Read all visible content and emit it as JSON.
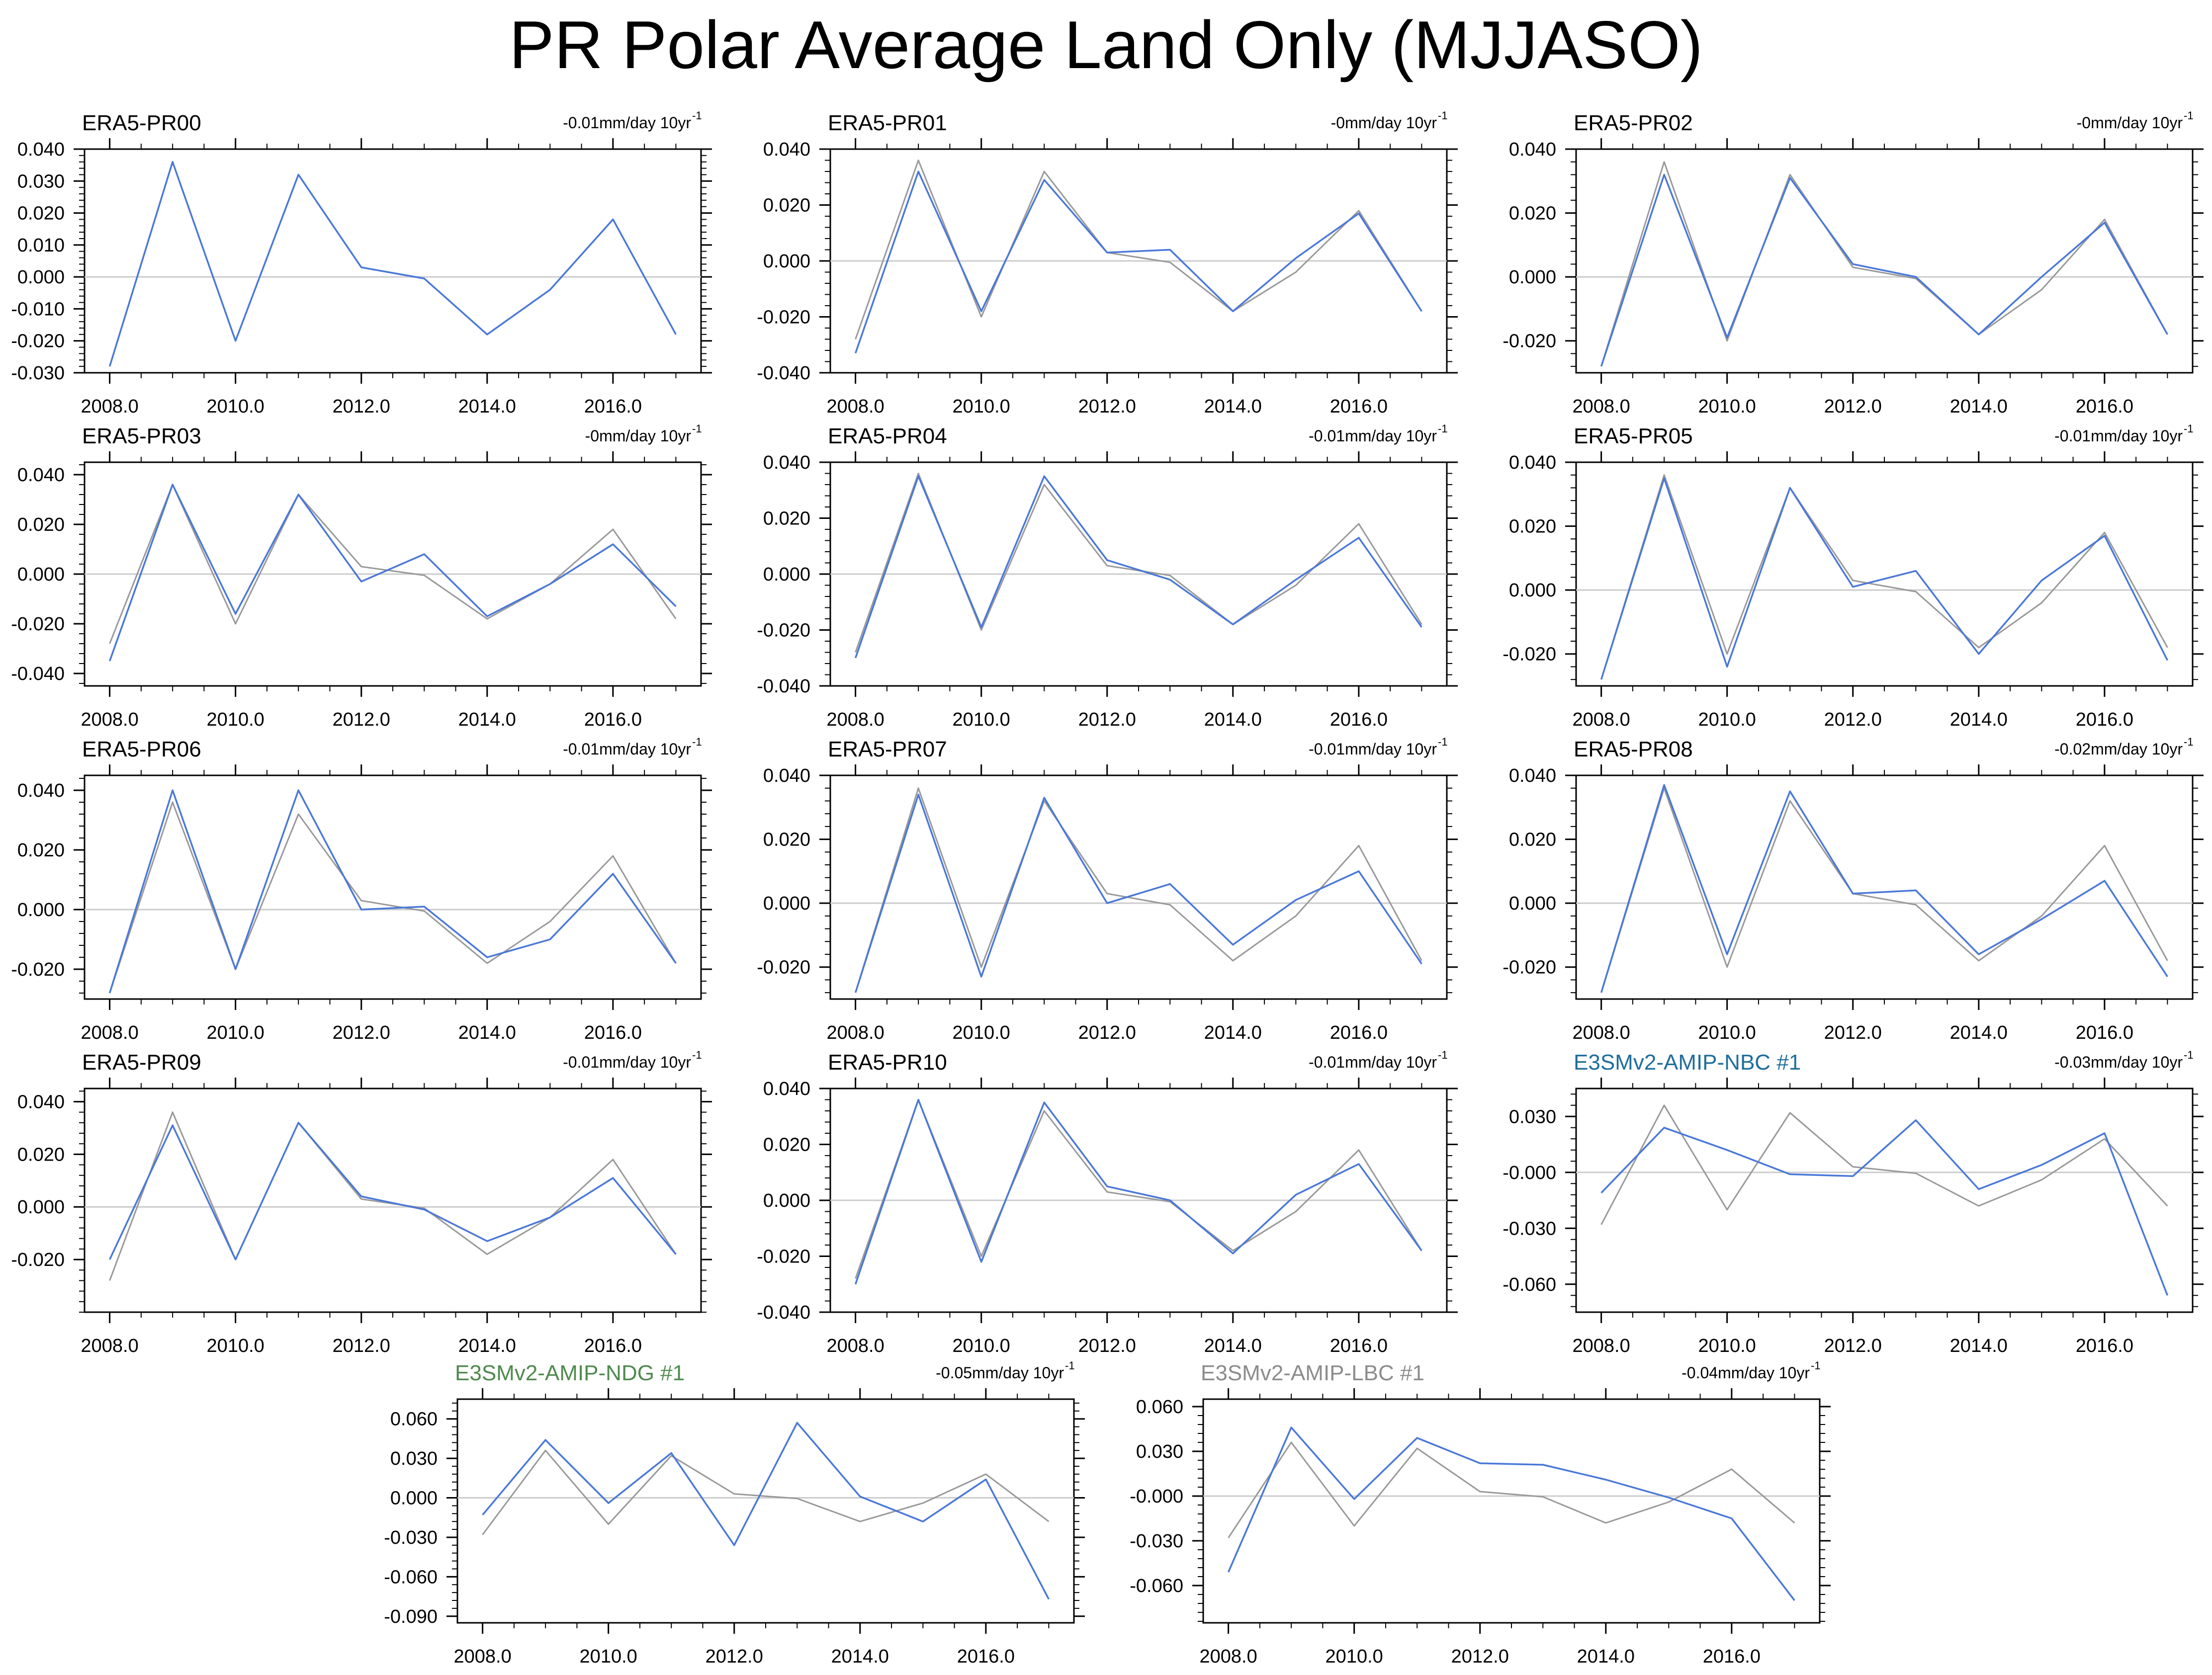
{
  "title": "PR Polar Average Land Only (MJJASO)",
  "colors": {
    "reference_line": "#999999",
    "series_line": "#4a78d8",
    "zero_line": "#cccccc",
    "label_default": "#000000",
    "label_nbc": "#1f6e9c",
    "label_ndg": "#4f8a4f",
    "label_lbc": "#8c8c8c"
  },
  "chart_data": [
    {
      "type": "line",
      "title": "ERA5-PR00",
      "trend": "-0.01mm/day 10yr",
      "trend_exp": "-1",
      "x": [
        2008,
        2009,
        2010,
        2011,
        2012,
        2013,
        2014,
        2015,
        2016,
        2017
      ],
      "xticks": [
        "2008.0",
        "2010.0",
        "2012.0",
        "2014.0",
        "2016.0"
      ],
      "ylim": [
        -0.03,
        0.04
      ],
      "yticks": [
        "0.040",
        "0.030",
        "0.020",
        "0.010",
        "0.000",
        "-0.010",
        "-0.020",
        "-0.030"
      ],
      "series": [
        {
          "name": "ERA5",
          "values": [
            -0.028,
            0.036,
            -0.02,
            0.032,
            0.003,
            -0.0005,
            -0.018,
            -0.004,
            0.018,
            -0.018
          ]
        }
      ]
    },
    {
      "type": "line",
      "title": "ERA5-PR01",
      "trend": "-0mm/day 10yr",
      "trend_exp": "-1",
      "x": [
        2008,
        2009,
        2010,
        2011,
        2012,
        2013,
        2014,
        2015,
        2016,
        2017
      ],
      "xticks": [
        "2008.0",
        "2010.0",
        "2012.0",
        "2014.0",
        "2016.0"
      ],
      "ylim": [
        -0.04,
        0.04
      ],
      "yticks": [
        "0.040",
        "0.020",
        "0.000",
        "-0.020",
        "-0.040"
      ],
      "series": [
        {
          "name": "ERA5",
          "values": [
            -0.028,
            0.036,
            -0.02,
            0.032,
            0.003,
            -0.0005,
            -0.018,
            -0.004,
            0.018,
            -0.018
          ]
        },
        {
          "name": "ERA5-PR01",
          "values": [
            -0.033,
            0.032,
            -0.018,
            0.029,
            0.003,
            0.004,
            -0.018,
            0.001,
            0.017,
            -0.018
          ]
        }
      ]
    },
    {
      "type": "line",
      "title": "ERA5-PR02",
      "trend": "-0mm/day 10yr",
      "trend_exp": "-1",
      "x": [
        2008,
        2009,
        2010,
        2011,
        2012,
        2013,
        2014,
        2015,
        2016,
        2017
      ],
      "xticks": [
        "2008.0",
        "2010.0",
        "2012.0",
        "2014.0",
        "2016.0"
      ],
      "ylim": [
        -0.03,
        0.04
      ],
      "yticks": [
        "0.040",
        "0.020",
        "0.000",
        "-0.020"
      ],
      "series": [
        {
          "name": "ERA5",
          "values": [
            -0.028,
            0.036,
            -0.02,
            0.032,
            0.003,
            -0.0005,
            -0.018,
            -0.004,
            0.018,
            -0.018
          ]
        },
        {
          "name": "ERA5-PR02",
          "values": [
            -0.028,
            0.032,
            -0.019,
            0.031,
            0.004,
            0.0,
            -0.018,
            0.0,
            0.017,
            -0.018
          ]
        }
      ]
    },
    {
      "type": "line",
      "title": "ERA5-PR03",
      "trend": "-0mm/day 10yr",
      "trend_exp": "-1",
      "x": [
        2008,
        2009,
        2010,
        2011,
        2012,
        2013,
        2014,
        2015,
        2016,
        2017
      ],
      "xticks": [
        "2008.0",
        "2010.0",
        "2012.0",
        "2014.0",
        "2016.0"
      ],
      "ylim": [
        -0.045,
        0.045
      ],
      "yticks": [
        "0.040",
        "0.020",
        "0.000",
        "-0.020",
        "-0.040"
      ],
      "series": [
        {
          "name": "ERA5",
          "values": [
            -0.028,
            0.036,
            -0.02,
            0.032,
            0.003,
            -0.0005,
            -0.018,
            -0.004,
            0.018,
            -0.018
          ]
        },
        {
          "name": "ERA5-PR03",
          "values": [
            -0.035,
            0.036,
            -0.016,
            0.032,
            -0.003,
            0.008,
            -0.017,
            -0.004,
            0.012,
            -0.013
          ]
        }
      ]
    },
    {
      "type": "line",
      "title": "ERA5-PR04",
      "trend": "-0.01mm/day 10yr",
      "trend_exp": "-1",
      "x": [
        2008,
        2009,
        2010,
        2011,
        2012,
        2013,
        2014,
        2015,
        2016,
        2017
      ],
      "xticks": [
        "2008.0",
        "2010.0",
        "2012.0",
        "2014.0",
        "2016.0"
      ],
      "ylim": [
        -0.04,
        0.04
      ],
      "yticks": [
        "0.040",
        "0.020",
        "0.000",
        "-0.020",
        "-0.040"
      ],
      "series": [
        {
          "name": "ERA5",
          "values": [
            -0.028,
            0.036,
            -0.02,
            0.032,
            0.003,
            -0.0005,
            -0.018,
            -0.004,
            0.018,
            -0.018
          ]
        },
        {
          "name": "ERA5-PR04",
          "values": [
            -0.03,
            0.035,
            -0.019,
            0.035,
            0.005,
            -0.002,
            -0.018,
            -0.002,
            0.013,
            -0.019
          ]
        }
      ]
    },
    {
      "type": "line",
      "title": "ERA5-PR05",
      "trend": "-0.01mm/day 10yr",
      "trend_exp": "-1",
      "x": [
        2008,
        2009,
        2010,
        2011,
        2012,
        2013,
        2014,
        2015,
        2016,
        2017
      ],
      "xticks": [
        "2008.0",
        "2010.0",
        "2012.0",
        "2014.0",
        "2016.0"
      ],
      "ylim": [
        -0.03,
        0.04
      ],
      "yticks": [
        "0.040",
        "0.020",
        "0.000",
        "-0.020"
      ],
      "series": [
        {
          "name": "ERA5",
          "values": [
            -0.028,
            0.036,
            -0.02,
            0.032,
            0.003,
            -0.0005,
            -0.018,
            -0.004,
            0.018,
            -0.018
          ]
        },
        {
          "name": "ERA5-PR05",
          "values": [
            -0.028,
            0.035,
            -0.024,
            0.032,
            0.001,
            0.006,
            -0.02,
            0.003,
            0.017,
            -0.022
          ]
        }
      ]
    },
    {
      "type": "line",
      "title": "ERA5-PR06",
      "trend": "-0.01mm/day 10yr",
      "trend_exp": "-1",
      "x": [
        2008,
        2009,
        2010,
        2011,
        2012,
        2013,
        2014,
        2015,
        2016,
        2017
      ],
      "xticks": [
        "2008.0",
        "2010.0",
        "2012.0",
        "2014.0",
        "2016.0"
      ],
      "ylim": [
        -0.03,
        0.045
      ],
      "yticks": [
        "0.040",
        "0.020",
        "0.000",
        "-0.020"
      ],
      "series": [
        {
          "name": "ERA5",
          "values": [
            -0.028,
            0.036,
            -0.02,
            0.032,
            0.003,
            -0.0005,
            -0.018,
            -0.004,
            0.018,
            -0.018
          ]
        },
        {
          "name": "ERA5-PR06",
          "values": [
            -0.028,
            0.04,
            -0.02,
            0.04,
            0.0,
            0.001,
            -0.016,
            -0.01,
            0.012,
            -0.018
          ]
        }
      ]
    },
    {
      "type": "line",
      "title": "ERA5-PR07",
      "trend": "-0.01mm/day 10yr",
      "trend_exp": "-1",
      "x": [
        2008,
        2009,
        2010,
        2011,
        2012,
        2013,
        2014,
        2015,
        2016,
        2017
      ],
      "xticks": [
        "2008.0",
        "2010.0",
        "2012.0",
        "2014.0",
        "2016.0"
      ],
      "ylim": [
        -0.03,
        0.04
      ],
      "yticks": [
        "0.040",
        "0.020",
        "0.000",
        "-0.020"
      ],
      "series": [
        {
          "name": "ERA5",
          "values": [
            -0.028,
            0.036,
            -0.02,
            0.032,
            0.003,
            -0.0005,
            -0.018,
            -0.004,
            0.018,
            -0.018
          ]
        },
        {
          "name": "ERA5-PR07",
          "values": [
            -0.028,
            0.034,
            -0.023,
            0.033,
            0.0,
            0.006,
            -0.013,
            0.001,
            0.01,
            -0.019
          ]
        }
      ]
    },
    {
      "type": "line",
      "title": "ERA5-PR08",
      "trend": "-0.02mm/day 10yr",
      "trend_exp": "-1",
      "x": [
        2008,
        2009,
        2010,
        2011,
        2012,
        2013,
        2014,
        2015,
        2016,
        2017
      ],
      "xticks": [
        "2008.0",
        "2010.0",
        "2012.0",
        "2014.0",
        "2016.0"
      ],
      "ylim": [
        -0.03,
        0.04
      ],
      "yticks": [
        "0.040",
        "0.020",
        "0.000",
        "-0.020"
      ],
      "series": [
        {
          "name": "ERA5",
          "values": [
            -0.028,
            0.036,
            -0.02,
            0.032,
            0.003,
            -0.0005,
            -0.018,
            -0.004,
            0.018,
            -0.018
          ]
        },
        {
          "name": "ERA5-PR08",
          "values": [
            -0.028,
            0.037,
            -0.016,
            0.035,
            0.003,
            0.004,
            -0.016,
            -0.005,
            0.007,
            -0.023
          ]
        }
      ]
    },
    {
      "type": "line",
      "title": "ERA5-PR09",
      "trend": "-0.01mm/day 10yr",
      "trend_exp": "-1",
      "x": [
        2008,
        2009,
        2010,
        2011,
        2012,
        2013,
        2014,
        2015,
        2016,
        2017
      ],
      "xticks": [
        "2008.0",
        "2010.0",
        "2012.0",
        "2014.0",
        "2016.0"
      ],
      "ylim": [
        -0.04,
        0.045
      ],
      "yticks": [
        "0.040",
        "0.020",
        "0.000",
        "-0.020"
      ],
      "series": [
        {
          "name": "ERA5",
          "values": [
            -0.028,
            0.036,
            -0.02,
            0.032,
            0.003,
            -0.0005,
            -0.018,
            -0.004,
            0.018,
            -0.018
          ]
        },
        {
          "name": "ERA5-PR09",
          "values": [
            -0.02,
            0.031,
            -0.02,
            0.032,
            0.004,
            -0.001,
            -0.013,
            -0.004,
            0.011,
            -0.018
          ]
        }
      ]
    },
    {
      "type": "line",
      "title": "ERA5-PR10",
      "trend": "-0.01mm/day 10yr",
      "trend_exp": "-1",
      "x": [
        2008,
        2009,
        2010,
        2011,
        2012,
        2013,
        2014,
        2015,
        2016,
        2017
      ],
      "xticks": [
        "2008.0",
        "2010.0",
        "2012.0",
        "2014.0",
        "2016.0"
      ],
      "ylim": [
        -0.04,
        0.04
      ],
      "yticks": [
        "0.040",
        "0.020",
        "0.000",
        "-0.020",
        "-0.040"
      ],
      "series": [
        {
          "name": "ERA5",
          "values": [
            -0.028,
            0.036,
            -0.02,
            0.032,
            0.003,
            -0.0005,
            -0.018,
            -0.004,
            0.018,
            -0.018
          ]
        },
        {
          "name": "ERA5-PR10",
          "values": [
            -0.03,
            0.036,
            -0.022,
            0.035,
            0.005,
            0.0,
            -0.019,
            0.002,
            0.013,
            -0.018
          ]
        }
      ]
    },
    {
      "type": "line",
      "title": "E3SMv2-AMIP-NBC #1",
      "title_color": "label_nbc",
      "trend": "-0.03mm/day 10yr",
      "trend_exp": "-1",
      "x": [
        2008,
        2009,
        2010,
        2011,
        2012,
        2013,
        2014,
        2015,
        2016,
        2017
      ],
      "xticks": [
        "2008.0",
        "2010.0",
        "2012.0",
        "2014.0",
        "2016.0"
      ],
      "ylim": [
        -0.075,
        0.045
      ],
      "yticks": [
        "0.030",
        "-0.000",
        "-0.030",
        "-0.060"
      ],
      "series": [
        {
          "name": "ERA5",
          "values": [
            -0.028,
            0.036,
            -0.02,
            0.032,
            0.003,
            -0.0005,
            -0.018,
            -0.004,
            0.018,
            -0.018
          ]
        },
        {
          "name": "E3SMv2-AMIP-NBC #1",
          "values": [
            -0.011,
            0.024,
            0.012,
            -0.001,
            -0.002,
            0.028,
            -0.009,
            0.004,
            0.021,
            -0.066
          ]
        }
      ]
    },
    {
      "type": "line",
      "title": "E3SMv2-AMIP-NDG #1",
      "title_color": "label_ndg",
      "trend": "-0.05mm/day 10yr",
      "trend_exp": "-1",
      "x": [
        2008,
        2009,
        2010,
        2011,
        2012,
        2013,
        2014,
        2015,
        2016,
        2017
      ],
      "xticks": [
        "2008.0",
        "2010.0",
        "2012.0",
        "2014.0",
        "2016.0"
      ],
      "ylim": [
        -0.095,
        0.075
      ],
      "yticks": [
        "0.060",
        "0.030",
        "0.000",
        "-0.030",
        "-0.060",
        "-0.090"
      ],
      "series": [
        {
          "name": "ERA5",
          "values": [
            -0.028,
            0.036,
            -0.02,
            0.032,
            0.003,
            -0.0005,
            -0.018,
            -0.004,
            0.018,
            -0.018
          ]
        },
        {
          "name": "E3SMv2-AMIP-NDG #1",
          "values": [
            -0.013,
            0.044,
            -0.004,
            0.034,
            -0.036,
            0.057,
            0.001,
            -0.018,
            0.014,
            -0.077
          ]
        }
      ]
    },
    {
      "type": "line",
      "title": "E3SMv2-AMIP-LBC #1",
      "title_color": "label_lbc",
      "trend": "-0.04mm/day 10yr",
      "trend_exp": "-1",
      "x": [
        2008,
        2009,
        2010,
        2011,
        2012,
        2013,
        2014,
        2015,
        2016,
        2017
      ],
      "xticks": [
        "2008.0",
        "2010.0",
        "2012.0",
        "2014.0",
        "2016.0"
      ],
      "ylim": [
        -0.085,
        0.065
      ],
      "yticks": [
        "0.060",
        "0.030",
        "-0.000",
        "-0.030",
        "-0.060"
      ],
      "series": [
        {
          "name": "ERA5",
          "values": [
            -0.028,
            0.036,
            -0.02,
            0.032,
            0.003,
            -0.0005,
            -0.018,
            -0.004,
            0.018,
            -0.018
          ]
        },
        {
          "name": "E3SMv2-AMIP-LBC #1",
          "values": [
            -0.051,
            0.046,
            -0.002,
            0.039,
            0.022,
            0.021,
            0.011,
            -0.001,
            -0.015,
            -0.07
          ]
        }
      ]
    }
  ]
}
